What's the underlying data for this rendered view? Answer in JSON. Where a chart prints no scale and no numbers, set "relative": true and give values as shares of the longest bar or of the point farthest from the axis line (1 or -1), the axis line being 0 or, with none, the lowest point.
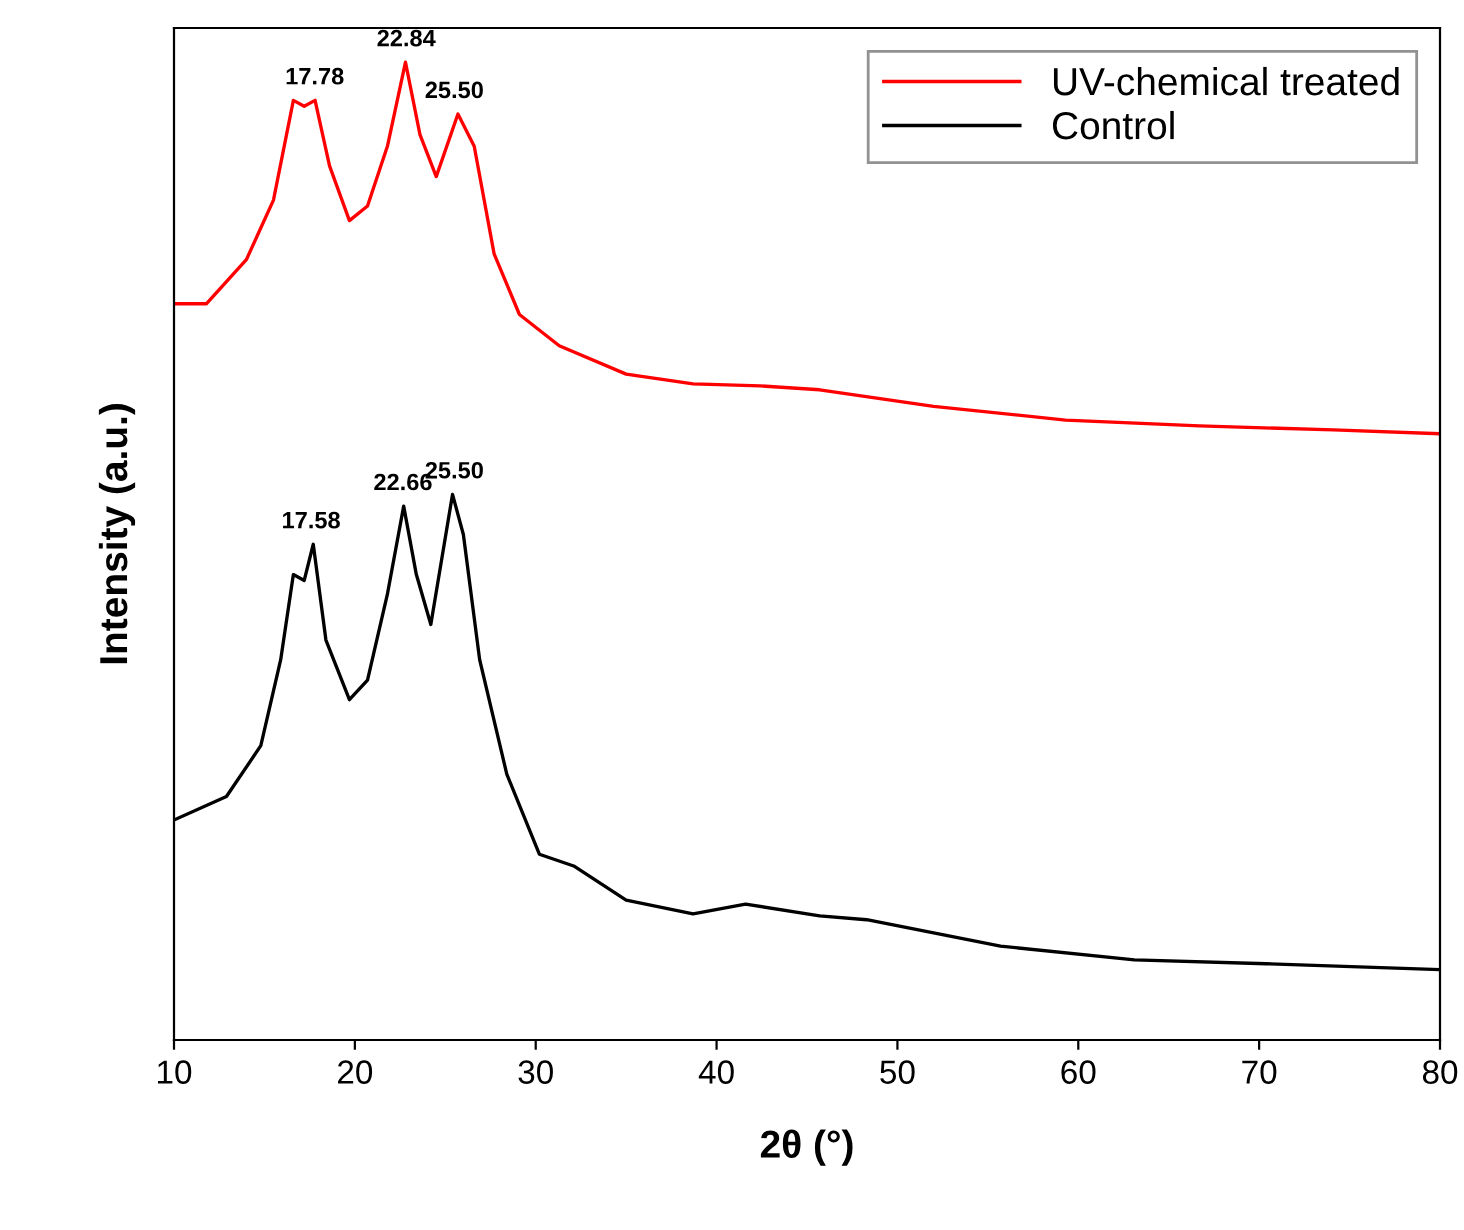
{
  "chart_data": {
    "type": "line",
    "xlabel": "2θ (°)",
    "ylabel": "Intensity (a.u.)",
    "relative": true,
    "xlim": [
      10,
      80
    ],
    "xticks": [
      10,
      20,
      30,
      40,
      50,
      60,
      70,
      80
    ],
    "legend": "top right",
    "grid": false,
    "marker": "none",
    "line_style": "solid",
    "series": [
      {
        "name": "UV-chemical treated",
        "color": "#ff0000",
        "x": [
          10,
          11.8,
          14.0,
          15.5,
          16.6,
          17.2,
          17.8,
          18.6,
          19.7,
          20.7,
          21.8,
          22.8,
          23.6,
          24.5,
          25.7,
          26.6,
          27.7,
          29.1,
          31.3,
          35.0,
          38.7,
          42.4,
          45.7,
          52.0,
          59.3,
          66.7,
          74.1,
          80
        ],
        "values": [
          0.753,
          0.753,
          0.798,
          0.859,
          0.961,
          0.955,
          0.961,
          0.894,
          0.838,
          0.853,
          0.914,
          1.0,
          0.926,
          0.883,
          0.947,
          0.914,
          0.804,
          0.742,
          0.71,
          0.681,
          0.671,
          0.669,
          0.665,
          0.648,
          0.634,
          0.628,
          0.624,
          0.62
        ]
      },
      {
        "name": "Control",
        "color": "#000000",
        "x": [
          10,
          12.9,
          14.8,
          15.9,
          16.6,
          17.2,
          17.7,
          18.4,
          19.7,
          20.7,
          21.8,
          22.7,
          23.4,
          24.2,
          25.4,
          26.0,
          26.9,
          28.4,
          30.2,
          32.1,
          35.0,
          38.7,
          41.6,
          45.7,
          48.3,
          55.7,
          63.1,
          70.4,
          80
        ],
        "values": [
          0.225,
          0.249,
          0.301,
          0.389,
          0.476,
          0.47,
          0.507,
          0.409,
          0.348,
          0.368,
          0.456,
          0.546,
          0.476,
          0.425,
          0.558,
          0.517,
          0.389,
          0.272,
          0.19,
          0.178,
          0.143,
          0.129,
          0.139,
          0.127,
          0.123,
          0.096,
          0.082,
          0.078,
          0.072
        ]
      }
    ],
    "annotations": [
      {
        "text": "17.78",
        "x": 17.78,
        "y": 0.961
      },
      {
        "text": "22.84",
        "x": 22.84,
        "y": 1.0
      },
      {
        "text": "25.50",
        "x": 25.5,
        "y": 0.947
      },
      {
        "text": "17.58",
        "x": 17.58,
        "y": 0.507
      },
      {
        "text": "22.66",
        "x": 22.66,
        "y": 0.546
      },
      {
        "text": "25.50",
        "x": 25.5,
        "y": 0.558
      }
    ]
  }
}
